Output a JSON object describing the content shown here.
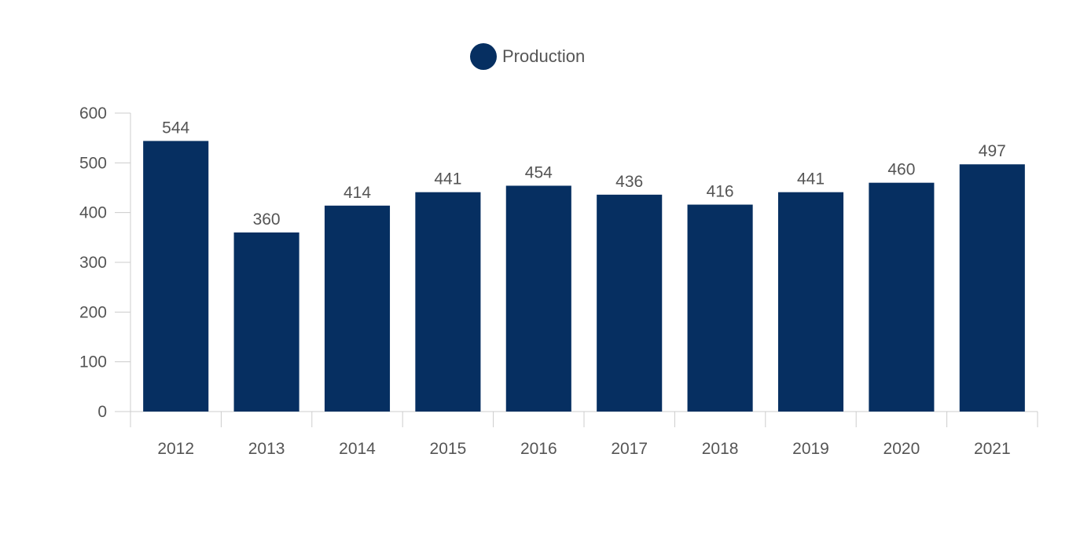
{
  "chart_data": {
    "type": "bar",
    "categories": [
      "2012",
      "2013",
      "2014",
      "2015",
      "2016",
      "2017",
      "2018",
      "2019",
      "2020",
      "2021"
    ],
    "series": [
      {
        "name": "Production",
        "values": [
          544,
          360,
          414,
          441,
          454,
          436,
          416,
          441,
          460,
          497
        ],
        "color": "#062f61"
      }
    ],
    "yticks": [
      0,
      100,
      200,
      300,
      400,
      500,
      600
    ],
    "ylim": [
      0,
      600
    ],
    "grid": false,
    "legend": "top-center",
    "data_labels": true
  }
}
